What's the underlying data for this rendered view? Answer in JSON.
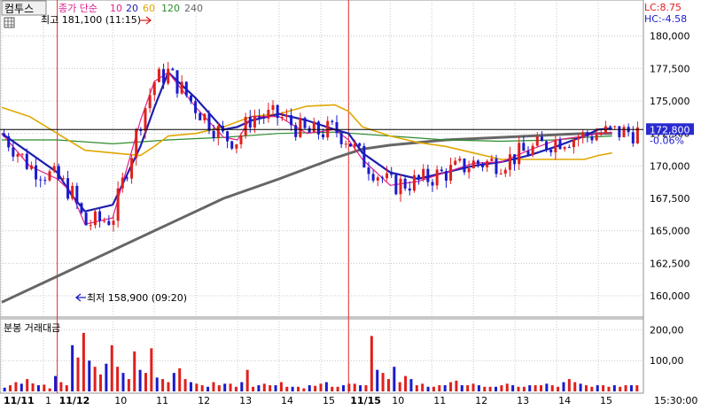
{
  "toolbar": {
    "tab_label": "컴투스",
    "ma_label": "종가 단순",
    "ma_periods": [
      {
        "label": "10",
        "color": "#e0208c"
      },
      {
        "label": "20",
        "color": "#1f1fb0"
      },
      {
        "label": "60",
        "color": "#e0a800"
      },
      {
        "label": "120",
        "color": "#2e8b2e"
      },
      {
        "label": "240",
        "color": "#666666"
      }
    ]
  },
  "right_info": {
    "lc": "LC:8.75",
    "hc": "HC:-4.58",
    "current_price": "172,800",
    "change_pct": "-0.06%"
  },
  "annotations": {
    "high": "최고 181,100 (11:15)",
    "low": "최저 158,900 (09:20)"
  },
  "volume_title": "분봉 거래대금",
  "colors": {
    "up": "#e0201c",
    "down": "#1a1acc",
    "grid": "#c8c8c8",
    "session_line": "#e03030",
    "price_badge": "#2a2ad0"
  },
  "chart_data": [
    {
      "type": "candlestick",
      "ylim": [
        158500,
        182500
      ],
      "y_ticks": [
        "180,000",
        "177,500",
        "175,000",
        "172,500",
        "170,000",
        "167,500",
        "165,000",
        "162,500",
        "160,000"
      ],
      "y_tick_values": [
        180000,
        177500,
        175000,
        172500,
        170000,
        167500,
        165000,
        162500,
        160000
      ],
      "x_labels": [
        "11/11",
        "1",
        "11/12",
        "10",
        "11",
        "12",
        "13",
        "14",
        "15",
        "11/15",
        "10",
        "11",
        "12",
        "13",
        "14",
        "15"
      ],
      "x_label_times": [
        0,
        3,
        4,
        8,
        11,
        14,
        17,
        20,
        23,
        25,
        28,
        31,
        34,
        37,
        40,
        43
      ],
      "reference_line": 172800,
      "session_breaks": [
        4,
        25
      ],
      "x_range": [
        0,
        46
      ],
      "series": [
        {
          "name": "10",
          "x": [
            0,
            2,
            4,
            5,
            6,
            8,
            10,
            11,
            12,
            14,
            16,
            17,
            18,
            20,
            22,
            24,
            25,
            26,
            28,
            30,
            32,
            34,
            36,
            38,
            40,
            42,
            43,
            44
          ],
          "values": [
            172500,
            170000,
            169000,
            168000,
            165500,
            166000,
            173500,
            176500,
            177200,
            174500,
            172200,
            172000,
            173800,
            173800,
            172500,
            172800,
            172000,
            170500,
            168500,
            168800,
            169500,
            170200,
            170300,
            171200,
            172000,
            172300,
            172500,
            172600
          ]
        },
        {
          "name": "20",
          "x": [
            0,
            2,
            4,
            5,
            6,
            8,
            10,
            11,
            12,
            14,
            16,
            17,
            18,
            20,
            22,
            24,
            25,
            26,
            28,
            30,
            32,
            34,
            36,
            38,
            40,
            42,
            43,
            44
          ],
          "values": [
            172500,
            171000,
            169500,
            167800,
            166500,
            167000,
            171500,
            174500,
            177200,
            175200,
            172800,
            173000,
            173500,
            174000,
            173500,
            172800,
            172500,
            171000,
            169500,
            169000,
            169500,
            170000,
            170300,
            170800,
            171500,
            172300,
            172800,
            172900
          ]
        },
        {
          "name": "60",
          "x": [
            0,
            2,
            4,
            6,
            8,
            10,
            11,
            12,
            14,
            16,
            18,
            20,
            22,
            24,
            25,
            26,
            28,
            30,
            32,
            34,
            36,
            38,
            40,
            42,
            43,
            44
          ],
          "values": [
            174500,
            173800,
            172500,
            171200,
            171000,
            170800,
            171500,
            172300,
            172500,
            173000,
            173800,
            174000,
            174600,
            174700,
            174200,
            173000,
            172300,
            171800,
            171500,
            171000,
            170500,
            170500,
            170500,
            170500,
            170800,
            171000
          ]
        },
        {
          "name": "120",
          "x": [
            0,
            4,
            8,
            12,
            16,
            20,
            24,
            28,
            32,
            36,
            40,
            42,
            44
          ],
          "values": [
            172000,
            172000,
            171700,
            172000,
            172200,
            172500,
            172600,
            172300,
            172000,
            171900,
            172000,
            172200,
            172300
          ]
        },
        {
          "name": "240",
          "x": [
            0,
            4,
            8,
            12,
            16,
            20,
            24,
            26,
            28,
            32,
            36,
            40,
            42,
            44
          ],
          "values": [
            159500,
            161500,
            163500,
            165500,
            167500,
            169000,
            170600,
            171300,
            171600,
            172000,
            172200,
            172400,
            172500,
            172500
          ]
        }
      ]
    },
    {
      "type": "bar",
      "title": "분봉 거래대금",
      "ylim": [
        0,
        230
      ],
      "y_ticks": [
        "200,00",
        "100,00"
      ],
      "y_tick_values": [
        200,
        100
      ],
      "x_range": [
        0,
        46
      ],
      "values": [
        12,
        20,
        30,
        25,
        40,
        26,
        20,
        22,
        10,
        50,
        30,
        20,
        150,
        110,
        190,
        100,
        80,
        55,
        90,
        150,
        80,
        60,
        40,
        130,
        70,
        60,
        140,
        45,
        40,
        30,
        60,
        75,
        40,
        30,
        25,
        20,
        15,
        30,
        20,
        25,
        25,
        15,
        30,
        70,
        15,
        20,
        25,
        20,
        20,
        30,
        15,
        15,
        15,
        10,
        20,
        18,
        25,
        30,
        15,
        15,
        20,
        25,
        25,
        20,
        20,
        180,
        70,
        60,
        40,
        80,
        30,
        50,
        40,
        20,
        25,
        15,
        15,
        20,
        20,
        30,
        35,
        20,
        20,
        25,
        20,
        15,
        15,
        15,
        20,
        25,
        20,
        15,
        15,
        20,
        20,
        20,
        25,
        20,
        15,
        30,
        40,
        30,
        25,
        20,
        15,
        20,
        20,
        15,
        20,
        15,
        20,
        20,
        20
      ],
      "colors": "alternating up/down"
    }
  ],
  "time_label_right": "15:30:00"
}
